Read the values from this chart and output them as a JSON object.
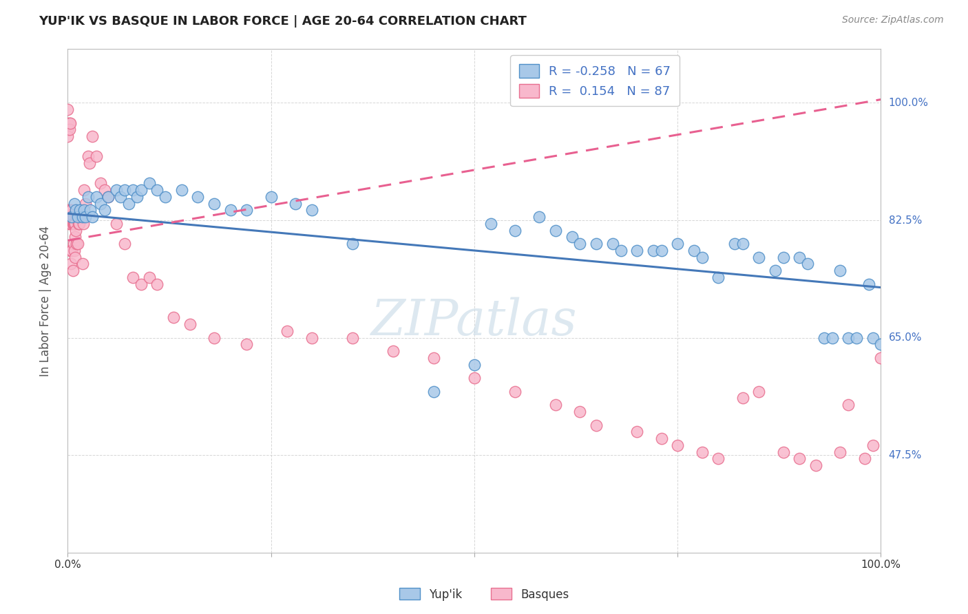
{
  "title": "YUP'IK VS BASQUE IN LABOR FORCE | AGE 20-64 CORRELATION CHART",
  "source": "Source: ZipAtlas.com",
  "ylabel": "In Labor Force | Age 20-64",
  "xlim": [
    0,
    1.0
  ],
  "ylim": [
    0.33,
    1.08
  ],
  "xtick_positions": [
    0.0,
    0.25,
    0.5,
    0.75,
    1.0
  ],
  "xticklabels": [
    "0.0%",
    "",
    "",
    "",
    "100.0%"
  ],
  "ytick_labels_right": [
    "100.0%",
    "82.5%",
    "65.0%",
    "47.5%"
  ],
  "ytick_vals_right": [
    1.0,
    0.825,
    0.65,
    0.475
  ],
  "legend_r_blue": "-0.258",
  "legend_n_blue": "67",
  "legend_r_pink": "0.154",
  "legend_n_pink": "87",
  "legend_label_blue": "Yup'ik",
  "legend_label_pink": "Basques",
  "blue_dot_color": "#a8c8e8",
  "blue_edge_color": "#5090c8",
  "pink_dot_color": "#f8b8cc",
  "pink_edge_color": "#e87090",
  "blue_line_color": "#4478b8",
  "pink_line_color": "#e86090",
  "watermark_color": "#ccdde8",
  "blue_r": -0.258,
  "blue_n": 67,
  "pink_r": 0.154,
  "pink_n": 87,
  "blue_line_y0": 0.835,
  "blue_line_y1": 0.725,
  "pink_line_y0": 0.795,
  "pink_line_y1": 1.005,
  "blue_scatter_x": [
    0.005,
    0.008,
    0.01,
    0.012,
    0.015,
    0.018,
    0.02,
    0.022,
    0.025,
    0.028,
    0.03,
    0.035,
    0.04,
    0.045,
    0.05,
    0.06,
    0.065,
    0.07,
    0.075,
    0.08,
    0.085,
    0.09,
    0.1,
    0.11,
    0.12,
    0.14,
    0.16,
    0.18,
    0.2,
    0.22,
    0.25,
    0.28,
    0.3,
    0.35,
    0.45,
    0.5,
    0.52,
    0.55,
    0.58,
    0.6,
    0.62,
    0.63,
    0.65,
    0.67,
    0.68,
    0.7,
    0.72,
    0.73,
    0.75,
    0.77,
    0.78,
    0.8,
    0.82,
    0.83,
    0.85,
    0.87,
    0.88,
    0.9,
    0.91,
    0.93,
    0.94,
    0.95,
    0.96,
    0.97,
    0.985,
    0.99,
    1.0
  ],
  "blue_scatter_y": [
    0.83,
    0.85,
    0.84,
    0.83,
    0.84,
    0.83,
    0.84,
    0.83,
    0.86,
    0.84,
    0.83,
    0.86,
    0.85,
    0.84,
    0.86,
    0.87,
    0.86,
    0.87,
    0.85,
    0.87,
    0.86,
    0.87,
    0.88,
    0.87,
    0.86,
    0.87,
    0.86,
    0.85,
    0.84,
    0.84,
    0.86,
    0.85,
    0.84,
    0.79,
    0.57,
    0.61,
    0.82,
    0.81,
    0.83,
    0.81,
    0.8,
    0.79,
    0.79,
    0.79,
    0.78,
    0.78,
    0.78,
    0.78,
    0.79,
    0.78,
    0.77,
    0.74,
    0.79,
    0.79,
    0.77,
    0.75,
    0.77,
    0.77,
    0.76,
    0.65,
    0.65,
    0.75,
    0.65,
    0.65,
    0.73,
    0.65,
    0.64
  ],
  "pink_scatter_x": [
    0.0,
    0.0,
    0.0,
    0.0,
    0.001,
    0.001,
    0.001,
    0.002,
    0.002,
    0.002,
    0.003,
    0.003,
    0.003,
    0.004,
    0.004,
    0.004,
    0.005,
    0.005,
    0.005,
    0.006,
    0.006,
    0.006,
    0.007,
    0.007,
    0.007,
    0.008,
    0.008,
    0.009,
    0.009,
    0.009,
    0.01,
    0.01,
    0.011,
    0.011,
    0.012,
    0.012,
    0.013,
    0.014,
    0.015,
    0.016,
    0.017,
    0.018,
    0.019,
    0.02,
    0.022,
    0.025,
    0.027,
    0.03,
    0.035,
    0.04,
    0.045,
    0.05,
    0.06,
    0.07,
    0.08,
    0.09,
    0.1,
    0.11,
    0.13,
    0.15,
    0.18,
    0.22,
    0.27,
    0.3,
    0.35,
    0.4,
    0.45,
    0.5,
    0.55,
    0.6,
    0.63,
    0.65,
    0.7,
    0.73,
    0.75,
    0.78,
    0.8,
    0.83,
    0.85,
    0.88,
    0.9,
    0.92,
    0.95,
    0.96,
    0.98,
    0.99,
    1.0
  ],
  "pink_scatter_y": [
    0.99,
    0.97,
    0.96,
    0.95,
    0.84,
    0.83,
    0.82,
    0.97,
    0.96,
    0.84,
    0.97,
    0.84,
    0.78,
    0.83,
    0.82,
    0.76,
    0.84,
    0.83,
    0.78,
    0.83,
    0.82,
    0.75,
    0.83,
    0.82,
    0.79,
    0.82,
    0.78,
    0.82,
    0.8,
    0.77,
    0.84,
    0.81,
    0.83,
    0.79,
    0.83,
    0.79,
    0.82,
    0.82,
    0.84,
    0.83,
    0.83,
    0.76,
    0.82,
    0.87,
    0.85,
    0.92,
    0.91,
    0.95,
    0.92,
    0.88,
    0.87,
    0.86,
    0.82,
    0.79,
    0.74,
    0.73,
    0.74,
    0.73,
    0.68,
    0.67,
    0.65,
    0.64,
    0.66,
    0.65,
    0.65,
    0.63,
    0.62,
    0.59,
    0.57,
    0.55,
    0.54,
    0.52,
    0.51,
    0.5,
    0.49,
    0.48,
    0.47,
    0.56,
    0.57,
    0.48,
    0.47,
    0.46,
    0.48,
    0.55,
    0.47,
    0.49,
    0.62
  ]
}
